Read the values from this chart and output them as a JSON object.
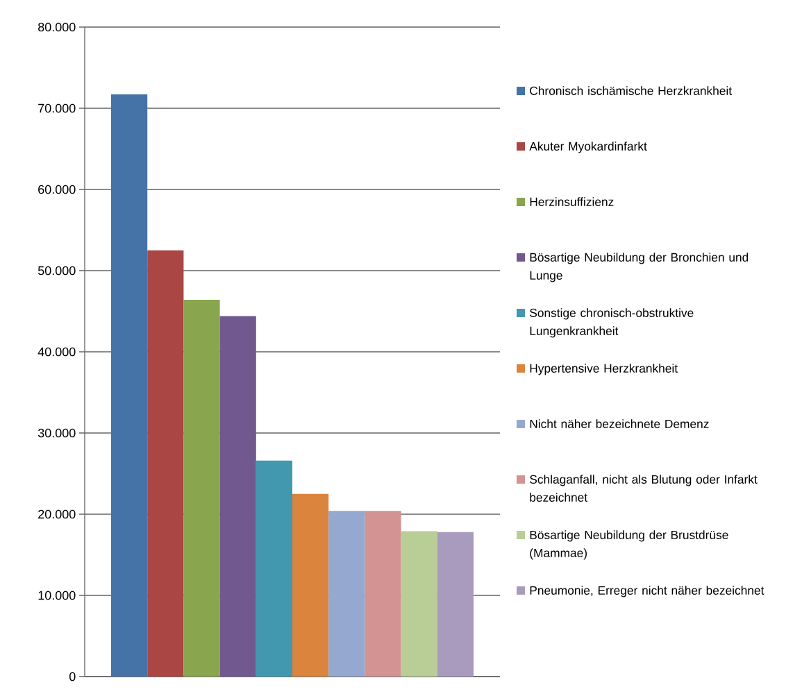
{
  "chart_data": {
    "type": "bar",
    "categories": [
      null
    ],
    "series": [
      {
        "name": "Chronisch ischämische Herzkrankheit",
        "color": "#4573a7",
        "values": [
          71700
        ]
      },
      {
        "name": "Akuter Myokardinfarkt",
        "color": "#aa4644",
        "values": [
          52500
        ]
      },
      {
        "name": "Herzinsuffizienz",
        "color": "#89a54e",
        "values": [
          46400
        ]
      },
      {
        "name": "Bösartige Neubildung der Bronchien und Lunge",
        "color": "#71588f",
        "values": [
          44400
        ]
      },
      {
        "name": "Sonstige chronisch-obstruktive Lungenkrankheit",
        "color": "#4298af",
        "values": [
          26600
        ]
      },
      {
        "name": "Hypertensive Herzkrankheit",
        "color": "#db843d",
        "values": [
          22500
        ]
      },
      {
        "name": "Nicht näher bezeichnete Demenz",
        "color": "#95a9d0",
        "values": [
          20400
        ]
      },
      {
        "name": "Schlaganfall, nicht als Blutung oder Infarkt bezeichnet",
        "color": "#d29392",
        "values": [
          20400
        ]
      },
      {
        "name": "Bösartige Neubildung der Brustdrüse (Mammae)",
        "color": "#b9cd96",
        "values": [
          17900
        ]
      },
      {
        "name": "Pneumonie, Erreger nicht näher bezeichnet",
        "color": "#a99bbd",
        "values": [
          17800
        ]
      }
    ],
    "ylim": [
      0,
      80000
    ],
    "yticks": [
      {
        "value": 0,
        "label": "0"
      },
      {
        "value": 10000,
        "label": "10.000"
      },
      {
        "value": 20000,
        "label": "20.000"
      },
      {
        "value": 30000,
        "label": "30.000"
      },
      {
        "value": 40000,
        "label": "40.000"
      },
      {
        "value": 50000,
        "label": "50.000"
      },
      {
        "value": 60000,
        "label": "60.000"
      },
      {
        "value": 70000,
        "label": "70.000"
      },
      {
        "value": 80000,
        "label": "80.000"
      }
    ],
    "grid": "y",
    "legend": "right"
  }
}
